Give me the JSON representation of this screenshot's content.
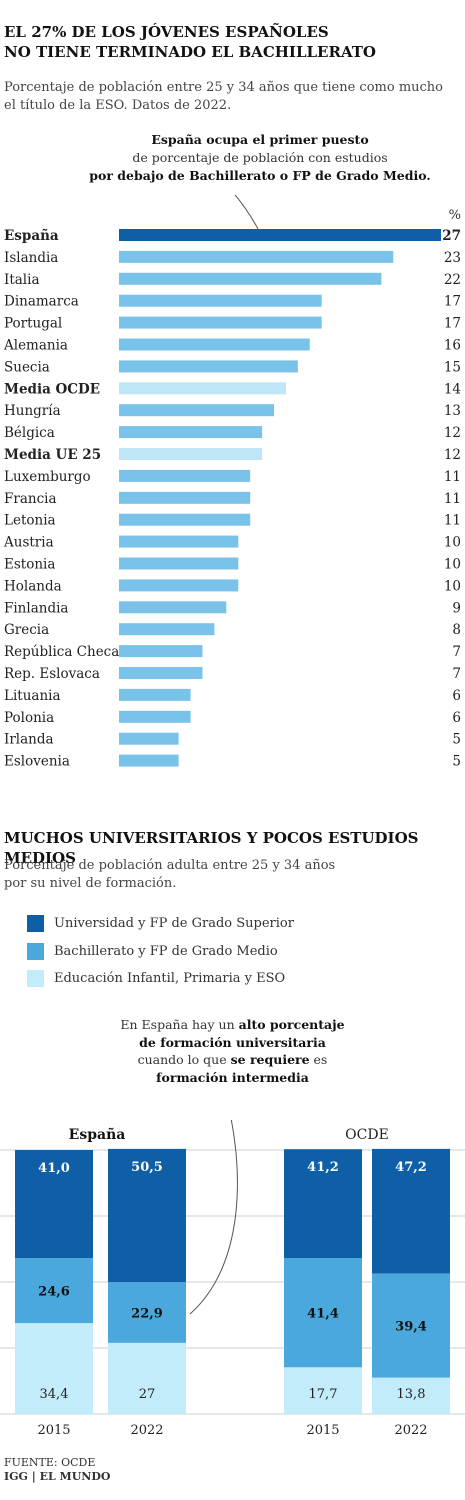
{
  "header": {
    "title_line1": "EL 27% DE LOS JÓVENES ESPAÑOLES",
    "title_line2": "NO TIENE TERMINADO EL BACHILLERATO",
    "subtitle_line1": "Porcentaje de población entre 25 y 34 años que tiene como mucho",
    "subtitle_line2": "el título de la ESO. Datos de 2022."
  },
  "annotation1": {
    "line1": "España ocupa el primer puesto",
    "line2": "de porcentaje de población con estudios",
    "line3": "por debajo de Bachillerato o FP de Grado Medio."
  },
  "section2": {
    "title": "MUCHOS UNIVERSITARIOS Y POCOS ESTUDIOS MEDIOS",
    "subtitle_line1": "Porcentaje de población adulta entre 25 y 34 años",
    "subtitle_line2": "por su nivel de formación."
  },
  "annotation2": {
    "part1": "En España hay un ",
    "bold1": "alto porcentaje de formación universitaria",
    "part2": " cuando lo que ",
    "bold2": "se requiere",
    "part3": " es ",
    "bold3": "formación intermedia"
  },
  "source": {
    "line1": "FUENTE: OCDE",
    "line2": "IGG | EL MUNDO"
  },
  "colors": {
    "espana": "#0f5fa6",
    "country": "#79c3ea",
    "average": "#bfe6f7",
    "level_univ": "#0f5fa6",
    "level_bach": "#4aa8dc",
    "level_basic": "#c3ecfa"
  },
  "chart_data": [
    {
      "type": "bar",
      "orientation": "horizontal",
      "unit": "%",
      "categories": [
        "España",
        "Islandia",
        "Italia",
        "Dinamarca",
        "Portugal",
        "Alemania",
        "Suecia",
        "Media OCDE",
        "Hungría",
        "Bélgica",
        "Media UE 25",
        "Luxemburgo",
        "Francia",
        "Letonia",
        "Austria",
        "Estonia",
        "Holanda",
        "Finlandia",
        "Grecia",
        "República Checa",
        "Rep. Eslovaca",
        "Lituania",
        "Polonia",
        "Irlanda",
        "Eslovenia"
      ],
      "values": [
        27,
        23,
        22,
        17,
        17,
        16,
        15,
        14,
        13,
        12,
        12,
        11,
        11,
        11,
        10,
        10,
        10,
        9,
        8,
        7,
        7,
        6,
        6,
        5,
        5
      ],
      "bold": [
        "España",
        "Media OCDE",
        "Media UE 25"
      ],
      "xlim": [
        0,
        27
      ]
    },
    {
      "type": "bar",
      "stacked": true,
      "groups": [
        "España",
        "OCDE"
      ],
      "years": [
        "2015",
        "2022"
      ],
      "legend": [
        "Universidad y FP de Grado Superior",
        "Bachillerato y FP de Grado Medio",
        "Educación Infantil, Primaria y ESO"
      ],
      "series": [
        {
          "name": "Universidad y FP de Grado Superior",
          "values": [
            "41,0",
            "50,5",
            "41,2",
            "47,2"
          ],
          "numeric": [
            41.0,
            50.5,
            41.2,
            47.2
          ]
        },
        {
          "name": "Bachillerato y FP de Grado Medio",
          "values": [
            "24,6",
            "22,9",
            "41,4",
            "39,4"
          ],
          "numeric": [
            24.6,
            22.9,
            41.4,
            39.4
          ]
        },
        {
          "name": "Educación Infantil, Primaria y ESO",
          "values": [
            "34,4",
            "27",
            "17,7",
            "13,8"
          ],
          "numeric": [
            34.4,
            27.0,
            17.7,
            13.8
          ]
        }
      ],
      "ylim": [
        0,
        100
      ]
    }
  ]
}
